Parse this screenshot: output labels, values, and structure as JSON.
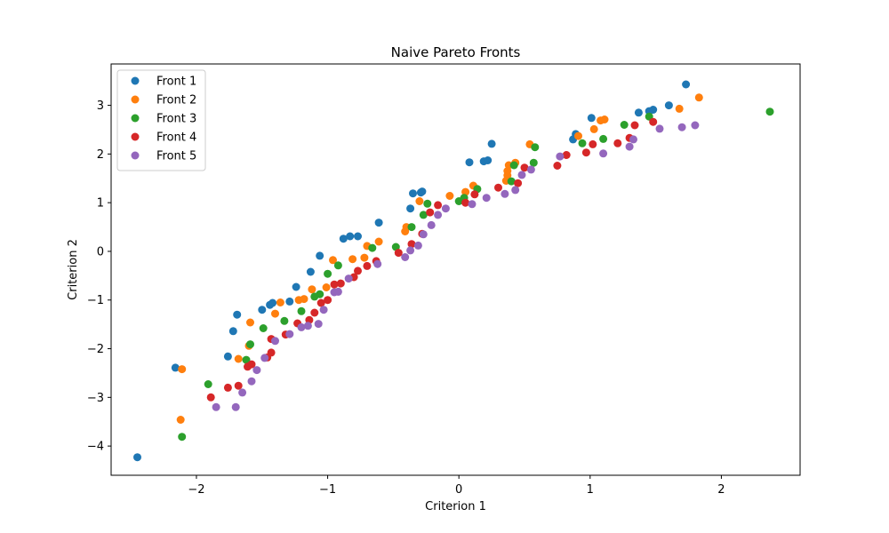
{
  "chart_data": {
    "type": "scatter",
    "title": "Naive Pareto Fronts",
    "xlabel": "Criterion 1",
    "ylabel": "Criterion 2",
    "xlim": [
      -2.65,
      2.6
    ],
    "ylim": [
      -4.6,
      3.85
    ],
    "xticks": [
      -2,
      -1,
      0,
      1,
      2
    ],
    "yticks": [
      -4,
      -3,
      -2,
      -1,
      0,
      1,
      2,
      3
    ],
    "xtick_labels": [
      "−2",
      "−1",
      "0",
      "1",
      "2"
    ],
    "ytick_labels": [
      "−4",
      "−3",
      "−2",
      "−1",
      "0",
      "1",
      "2",
      "3"
    ],
    "legend_position": "top-left",
    "grid": false,
    "series": [
      {
        "name": "Front 1",
        "color": "#1f77b4",
        "points": [
          [
            -2.45,
            -4.23
          ],
          [
            -2.16,
            -2.39
          ],
          [
            -1.76,
            -2.16
          ],
          [
            -1.72,
            -1.64
          ],
          [
            -1.69,
            -1.3
          ],
          [
            -1.5,
            -1.2
          ],
          [
            -1.44,
            -1.1
          ],
          [
            -1.42,
            -1.06
          ],
          [
            -1.29,
            -1.03
          ],
          [
            -1.24,
            -0.73
          ],
          [
            -1.13,
            -0.42
          ],
          [
            -1.06,
            -0.09
          ],
          [
            -0.88,
            0.26
          ],
          [
            -0.83,
            0.31
          ],
          [
            -0.77,
            0.31
          ],
          [
            -0.61,
            0.59
          ],
          [
            -0.37,
            0.88
          ],
          [
            -0.35,
            1.19
          ],
          [
            -0.29,
            1.21
          ],
          [
            -0.28,
            1.23
          ],
          [
            0.08,
            1.83
          ],
          [
            0.19,
            1.85
          ],
          [
            0.22,
            1.87
          ],
          [
            0.25,
            2.21
          ],
          [
            0.87,
            2.3
          ],
          [
            0.89,
            2.41
          ],
          [
            1.01,
            2.74
          ],
          [
            1.37,
            2.85
          ],
          [
            1.45,
            2.88
          ],
          [
            1.48,
            2.91
          ],
          [
            1.6,
            3.0
          ],
          [
            1.73,
            3.43
          ]
        ]
      },
      {
        "name": "Front 2",
        "color": "#ff7f0e",
        "points": [
          [
            -2.12,
            -3.46
          ],
          [
            -2.11,
            -2.42
          ],
          [
            -1.68,
            -2.21
          ],
          [
            -1.6,
            -1.94
          ],
          [
            -1.59,
            -1.46
          ],
          [
            -1.4,
            -1.28
          ],
          [
            -1.36,
            -1.05
          ],
          [
            -1.22,
            -1.0
          ],
          [
            -1.18,
            -0.98
          ],
          [
            -1.12,
            -0.78
          ],
          [
            -1.01,
            -0.74
          ],
          [
            -0.96,
            -0.18
          ],
          [
            -0.81,
            -0.16
          ],
          [
            -0.72,
            -0.13
          ],
          [
            -0.7,
            0.11
          ],
          [
            -0.61,
            0.2
          ],
          [
            -0.41,
            0.41
          ],
          [
            -0.4,
            0.5
          ],
          [
            -0.3,
            1.03
          ],
          [
            -0.07,
            1.14
          ],
          [
            0.05,
            1.22
          ],
          [
            0.11,
            1.35
          ],
          [
            0.36,
            1.45
          ],
          [
            0.37,
            1.56
          ],
          [
            0.37,
            1.65
          ],
          [
            0.38,
            1.77
          ],
          [
            0.43,
            1.82
          ],
          [
            0.54,
            2.2
          ],
          [
            0.91,
            2.37
          ],
          [
            1.03,
            2.51
          ],
          [
            1.08,
            2.69
          ],
          [
            1.11,
            2.71
          ],
          [
            1.68,
            2.93
          ],
          [
            1.83,
            3.16
          ]
        ]
      },
      {
        "name": "Front 3",
        "color": "#2ca02c",
        "points": [
          [
            -2.11,
            -3.81
          ],
          [
            -1.91,
            -2.73
          ],
          [
            -1.62,
            -2.23
          ],
          [
            -1.59,
            -1.91
          ],
          [
            -1.49,
            -1.58
          ],
          [
            -1.33,
            -1.43
          ],
          [
            -1.2,
            -1.23
          ],
          [
            -1.1,
            -0.93
          ],
          [
            -1.06,
            -0.88
          ],
          [
            -1.0,
            -0.46
          ],
          [
            -0.92,
            -0.29
          ],
          [
            -0.66,
            0.07
          ],
          [
            -0.48,
            0.09
          ],
          [
            -0.36,
            0.5
          ],
          [
            -0.24,
            0.98
          ],
          [
            -0.27,
            0.75
          ],
          [
            0.0,
            1.03
          ],
          [
            0.04,
            1.1
          ],
          [
            0.14,
            1.28
          ],
          [
            0.4,
            1.44
          ],
          [
            0.42,
            1.77
          ],
          [
            0.57,
            1.82
          ],
          [
            0.58,
            2.14
          ],
          [
            0.94,
            2.22
          ],
          [
            1.1,
            2.31
          ],
          [
            1.26,
            2.6
          ],
          [
            1.45,
            2.77
          ],
          [
            2.37,
            2.87
          ]
        ]
      },
      {
        "name": "Front 4",
        "color": "#d62728",
        "points": [
          [
            -1.89,
            -3.0
          ],
          [
            -1.76,
            -2.8
          ],
          [
            -1.68,
            -2.76
          ],
          [
            -1.61,
            -2.37
          ],
          [
            -1.58,
            -2.32
          ],
          [
            -1.46,
            -2.18
          ],
          [
            -1.43,
            -2.08
          ],
          [
            -1.43,
            -1.8
          ],
          [
            -1.32,
            -1.71
          ],
          [
            -1.23,
            -1.48
          ],
          [
            -1.14,
            -1.41
          ],
          [
            -1.1,
            -1.26
          ],
          [
            -1.05,
            -1.06
          ],
          [
            -1.0,
            -1.0
          ],
          [
            -0.95,
            -0.68
          ],
          [
            -0.9,
            -0.66
          ],
          [
            -0.8,
            -0.53
          ],
          [
            -0.77,
            -0.4
          ],
          [
            -0.7,
            -0.3
          ],
          [
            -0.63,
            -0.2
          ],
          [
            -0.46,
            -0.03
          ],
          [
            -0.36,
            0.15
          ],
          [
            -0.28,
            0.36
          ],
          [
            -0.22,
            0.8
          ],
          [
            -0.16,
            0.95
          ],
          [
            0.05,
            1.0
          ],
          [
            0.12,
            1.17
          ],
          [
            0.3,
            1.31
          ],
          [
            0.45,
            1.4
          ],
          [
            0.5,
            1.72
          ],
          [
            0.75,
            1.76
          ],
          [
            0.82,
            1.98
          ],
          [
            0.97,
            2.03
          ],
          [
            1.02,
            2.2
          ],
          [
            1.21,
            2.22
          ],
          [
            1.3,
            2.33
          ],
          [
            1.34,
            2.59
          ],
          [
            1.48,
            2.66
          ]
        ]
      },
      {
        "name": "Front 5",
        "color": "#9467bd",
        "points": [
          [
            -1.85,
            -3.2
          ],
          [
            -1.7,
            -3.2
          ],
          [
            -1.65,
            -2.9
          ],
          [
            -1.58,
            -2.67
          ],
          [
            -1.54,
            -2.44
          ],
          [
            -1.48,
            -2.19
          ],
          [
            -1.4,
            -1.84
          ],
          [
            -1.29,
            -1.7
          ],
          [
            -1.2,
            -1.56
          ],
          [
            -1.15,
            -1.53
          ],
          [
            -1.07,
            -1.49
          ],
          [
            -1.03,
            -1.2
          ],
          [
            -0.95,
            -0.84
          ],
          [
            -0.92,
            -0.83
          ],
          [
            -0.84,
            -0.56
          ],
          [
            -0.62,
            -0.26
          ],
          [
            -0.41,
            -0.12
          ],
          [
            -0.37,
            0.02
          ],
          [
            -0.31,
            0.12
          ],
          [
            -0.27,
            0.35
          ],
          [
            -0.21,
            0.54
          ],
          [
            -0.16,
            0.75
          ],
          [
            -0.1,
            0.88
          ],
          [
            0.1,
            0.97
          ],
          [
            0.21,
            1.1
          ],
          [
            0.35,
            1.18
          ],
          [
            0.43,
            1.26
          ],
          [
            0.48,
            1.57
          ],
          [
            0.55,
            1.68
          ],
          [
            0.77,
            1.95
          ],
          [
            1.1,
            2.01
          ],
          [
            1.3,
            2.15
          ],
          [
            1.33,
            2.3
          ],
          [
            1.53,
            2.52
          ],
          [
            1.7,
            2.55
          ],
          [
            1.8,
            2.59
          ]
        ]
      }
    ]
  }
}
